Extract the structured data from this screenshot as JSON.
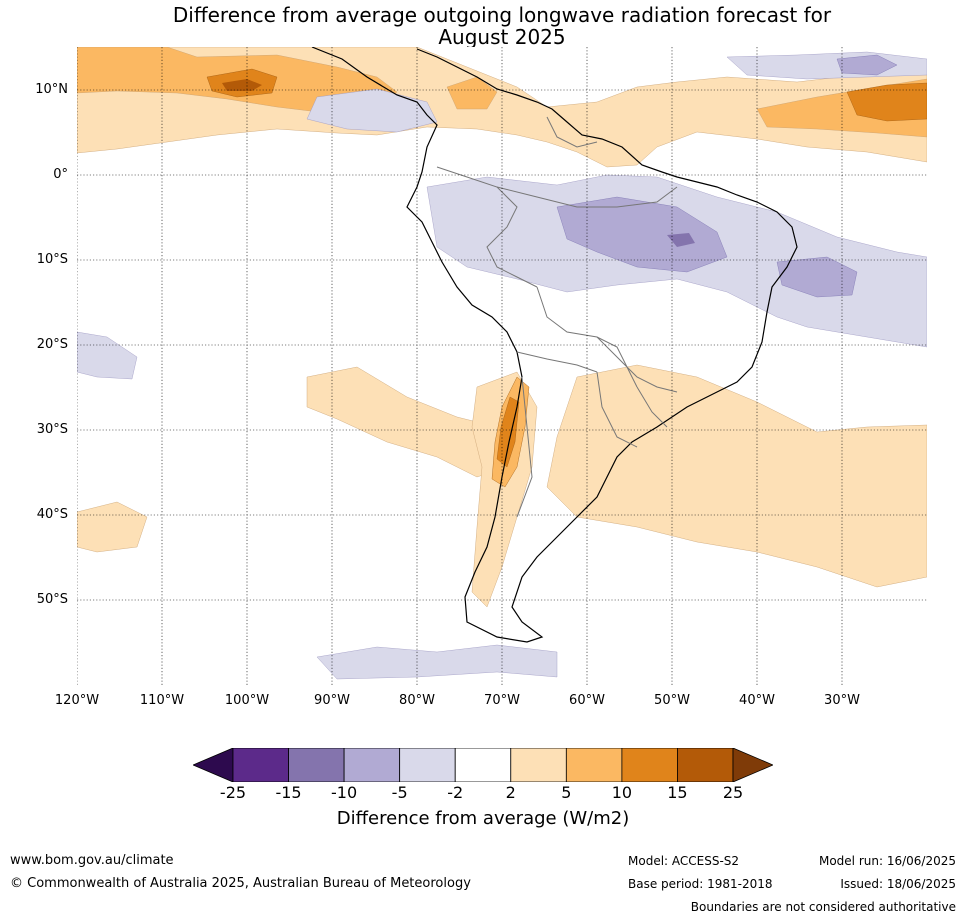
{
  "title_line1": "Difference from average outgoing longwave radiation forecast for",
  "title_line2": "August 2025",
  "lat_labels": [
    "10°N",
    "0°",
    "10°S",
    "20°S",
    "30°S",
    "40°S",
    "50°S"
  ],
  "lon_labels": [
    "120°W",
    "110°W",
    "100°W",
    "90°W",
    "80°W",
    "70°W",
    "60°W",
    "50°W",
    "40°W",
    "30°W"
  ],
  "colorbar": {
    "ticks": [
      "-25",
      "-15",
      "-10",
      "-5",
      "-2",
      "2",
      "5",
      "10",
      "15",
      "25"
    ],
    "colors": [
      "#2d0a4e",
      "#5c2a8a",
      "#8474ad",
      "#b1aad3",
      "#d9d9ea",
      "#ffffff",
      "#fde0b6",
      "#fbb862",
      "#e0841b",
      "#b35a08",
      "#7f3b08"
    ],
    "label": "Difference from average (W/m2)"
  },
  "footer": {
    "website": "www.bom.gov.au/climate",
    "copyright": "© Commonwealth of Australia 2025, Australian Bureau of Meteorology",
    "model": "Model: ACCESS-S2",
    "base_period": "Base period: 1981-2018",
    "model_run": "Model run: 16/06/2025",
    "issued": "Issued: 18/06/2025",
    "disclaimer": "Boundaries are not considered authoritative"
  }
}
